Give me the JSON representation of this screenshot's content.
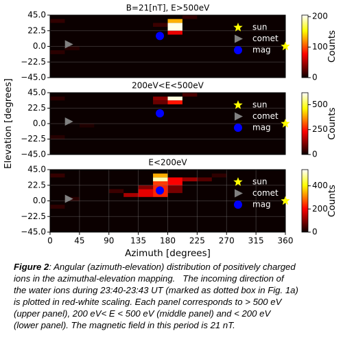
{
  "chart_data": [
    {
      "type": "heatmap",
      "title": "B=21[nT], E>500eV",
      "xlim": [
        0,
        360
      ],
      "ylim": [
        -45,
        45
      ],
      "yticks": [
        {
          "value": 45,
          "label": "45.0"
        },
        {
          "value": 22.5,
          "label": "22.5"
        },
        {
          "value": 0,
          "label": "0.0"
        },
        {
          "value": -22.5,
          "label": "−22.5"
        },
        {
          "value": -45,
          "label": "−45.0"
        }
      ],
      "grid": true,
      "colorbar": {
        "label": "Counts",
        "lim": [
          0,
          205
        ],
        "ticks": [
          0,
          100,
          200
        ]
      },
      "cells": [
        {
          "x": [
            180,
            202.5
          ],
          "y": [
            33.75,
            39.375
          ],
          "value": 130
        },
        {
          "x": [
            180,
            202.5
          ],
          "y": [
            22.5,
            33.75
          ],
          "value": 200
        },
        {
          "x": [
            180,
            202.5
          ],
          "y": [
            16.875,
            22.5
          ],
          "value": 70
        },
        {
          "x": [
            0,
            22.5
          ],
          "y": [
            33.75,
            39.375
          ],
          "value": 12
        },
        {
          "x": [
            22.5,
            45
          ],
          "y": [
            -5.625,
            0
          ],
          "value": 8
        },
        {
          "x": [
            0,
            22.5
          ],
          "y": [
            -11.25,
            -5.625
          ],
          "value": 10
        },
        {
          "x": [
            157.5,
            180
          ],
          "y": [
            28.125,
            33.75
          ],
          "value": 15
        },
        {
          "x": [
            202.5,
            225
          ],
          "y": [
            39.375,
            45
          ],
          "value": 12
        }
      ],
      "series": [
        {
          "name": "sun",
          "color": "#ffff00",
          "marker": "star",
          "x": [
            360
          ],
          "y": [
            0
          ]
        },
        {
          "name": "comet",
          "color": "#808080",
          "marker": "triangle",
          "x": [
            28
          ],
          "y": [
            3
          ]
        },
        {
          "name": "mag",
          "color": "#0000ff",
          "marker": "circle",
          "x": [
            168
          ],
          "y": [
            15
          ]
        }
      ]
    },
    {
      "type": "heatmap",
      "title": "200eV<E<500eV",
      "ylabel": "Elevation [degrees]",
      "xlim": [
        0,
        360
      ],
      "ylim": [
        -45,
        45
      ],
      "yticks": [
        {
          "value": 45,
          "label": "45.0"
        },
        {
          "value": 22.5,
          "label": "22.5"
        },
        {
          "value": 0,
          "label": "0.0"
        },
        {
          "value": -22.5,
          "label": "−22.5"
        },
        {
          "value": -45,
          "label": "−45.0"
        }
      ],
      "grid": true,
      "colorbar": {
        "label": "Counts",
        "lim": [
          0,
          620
        ],
        "ticks": [
          0,
          250,
          500
        ]
      },
      "cells": [
        {
          "x": [
            180,
            202.5
          ],
          "y": [
            33.75,
            39.375
          ],
          "value": 600
        },
        {
          "x": [
            180,
            202.5
          ],
          "y": [
            28.125,
            33.75
          ],
          "value": 250
        },
        {
          "x": [
            157.5,
            180
          ],
          "y": [
            33.75,
            39.375
          ],
          "value": 120
        },
        {
          "x": [
            157.5,
            180
          ],
          "y": [
            28.125,
            33.75
          ],
          "value": 90
        },
        {
          "x": [
            202.5,
            225
          ],
          "y": [
            39.375,
            45
          ],
          "value": 60
        },
        {
          "x": [
            0,
            22.5
          ],
          "y": [
            33.75,
            39.375
          ],
          "value": 30
        },
        {
          "x": [
            45,
            67.5
          ],
          "y": [
            -5.625,
            0
          ],
          "value": 20
        },
        {
          "x": [
            0,
            22.5
          ],
          "y": [
            -22.5,
            -16.875
          ],
          "value": 25
        }
      ],
      "series": [
        {
          "name": "sun",
          "color": "#ffff00",
          "marker": "star",
          "x": [
            360
          ],
          "y": [
            0
          ]
        },
        {
          "name": "comet",
          "color": "#808080",
          "marker": "triangle",
          "x": [
            28
          ],
          "y": [
            3
          ]
        },
        {
          "name": "mag",
          "color": "#0000ff",
          "marker": "circle",
          "x": [
            168
          ],
          "y": [
            15
          ]
        }
      ]
    },
    {
      "type": "heatmap",
      "title": "E<200eV",
      "xlabel": "Azimuth [degrees]",
      "xlim": [
        0,
        360
      ],
      "ylim": [
        -45,
        45
      ],
      "xticks": [
        0,
        45,
        90,
        135,
        180,
        225,
        270,
        315,
        360
      ],
      "yticks": [
        {
          "value": 45,
          "label": "45.0"
        },
        {
          "value": 22.5,
          "label": "22.5"
        },
        {
          "value": 0,
          "label": "0.0"
        },
        {
          "value": -22.5,
          "label": "−22.5"
        },
        {
          "value": -45,
          "label": "−45.0"
        }
      ],
      "grid": true,
      "colorbar": {
        "label": "Counts",
        "lim": [
          0,
          540
        ],
        "ticks": [
          0,
          200,
          400
        ]
      },
      "cells": [
        {
          "x": [
            157.5,
            180
          ],
          "y": [
            28.125,
            33.75
          ],
          "value": 500
        },
        {
          "x": [
            157.5,
            180
          ],
          "y": [
            33.75,
            39.375
          ],
          "value": 340
        },
        {
          "x": [
            157.5,
            180
          ],
          "y": [
            22.5,
            28.125
          ],
          "value": 250
        },
        {
          "x": [
            180,
            202.5
          ],
          "y": [
            22.5,
            33.75
          ],
          "value": 200
        },
        {
          "x": [
            202.5,
            225
          ],
          "y": [
            28.125,
            33.75
          ],
          "value": 120
        },
        {
          "x": [
            225,
            247.5
          ],
          "y": [
            28.125,
            33.75
          ],
          "value": 60
        },
        {
          "x": [
            135,
            157.5
          ],
          "y": [
            5.625,
            16.875
          ],
          "value": 180
        },
        {
          "x": [
            157.5,
            180
          ],
          "y": [
            5.625,
            22.5
          ],
          "value": 230
        },
        {
          "x": [
            112.5,
            135
          ],
          "y": [
            5.625,
            11.25
          ],
          "value": 130
        },
        {
          "x": [
            135,
            157.5
          ],
          "y": [
            16.875,
            22.5
          ],
          "value": 100
        },
        {
          "x": [
            180,
            202.5
          ],
          "y": [
            11.25,
            22.5
          ],
          "value": 90
        },
        {
          "x": [
            90,
            112.5
          ],
          "y": [
            11.25,
            16.875
          ],
          "value": 40
        },
        {
          "x": [
            0,
            22.5
          ],
          "y": [
            33.75,
            39.375
          ],
          "value": 35
        },
        {
          "x": [
            0,
            22.5
          ],
          "y": [
            -11.25,
            -5.625
          ],
          "value": 30
        },
        {
          "x": [
            22.5,
            45
          ],
          "y": [
            0,
            5.625
          ],
          "value": 25
        },
        {
          "x": [
            247.5,
            270
          ],
          "y": [
            33.75,
            39.375
          ],
          "value": 30
        }
      ],
      "series": [
        {
          "name": "sun",
          "color": "#ffff00",
          "marker": "star",
          "x": [
            360
          ],
          "y": [
            0
          ]
        },
        {
          "name": "comet",
          "color": "#808080",
          "marker": "triangle",
          "x": [
            28
          ],
          "y": [
            3
          ]
        },
        {
          "name": "mag",
          "color": "#0000ff",
          "marker": "circle",
          "x": [
            168
          ],
          "y": [
            15
          ]
        }
      ]
    }
  ],
  "caption": {
    "label": "Figure 2",
    "lines": [
      ": Angular (azimuth-elevation) distribution of positively charged",
      "ions in the azimuthal-elevation mapping.   The incoming direction of",
      "the water ions during 23:40-23:43 UT (marked as dotted box in Fig. 1a)",
      "is plotted in red-white scaling. Each panel corresponds to > 500 eV",
      "(upper panel), 200 eV< E < 500 eV (middle panel) and < 200 eV",
      "(lower panel). The magnetic field in this period is 21 nT."
    ]
  }
}
